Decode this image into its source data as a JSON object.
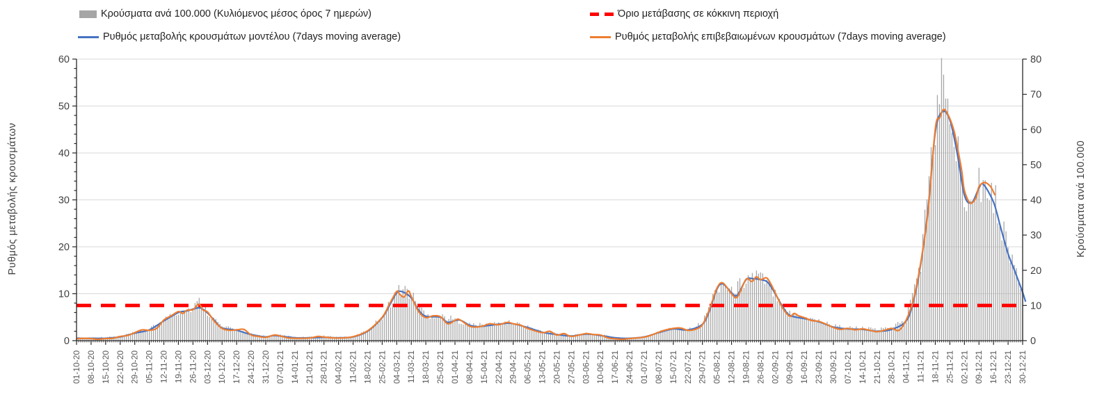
{
  "chart_data": {
    "type": "combo-bar-line",
    "title": "",
    "legend": [
      {
        "label": "Κρούσματα ανά 100.000 (Κυλιόμενος μέσος όρος 7 ημερών)",
        "swatch": "bar",
        "color": "#a6a6a6"
      },
      {
        "label": "Όριο μετάβασης σε κόκκινη περιοχή",
        "swatch": "dashed-line",
        "color": "#ff0000"
      },
      {
        "label": "Ρυθμός μεταβολής κρουσμάτων μοντέλου (7days moving average)",
        "swatch": "line",
        "color": "#4472c4"
      },
      {
        "label": "Ρυθμός μεταβολής επιβεβαιωμένων κρουσμάτων (7days moving average)",
        "swatch": "line",
        "color": "#ed7d31"
      }
    ],
    "left_axis": {
      "title": "Ρυθμός μεταβολής κρουσμάτων",
      "min": 0,
      "max": 60,
      "tick_step": 10,
      "minor_step": 2
    },
    "right_axis": {
      "title": "Κρούσματα ανά 100.000",
      "min": 0,
      "max": 80,
      "tick_step": 10
    },
    "x_labels": [
      "01-10-20",
      "08-10-20",
      "15-10-20",
      "22-10-20",
      "29-10-20",
      "05-11-20",
      "12-11-20",
      "19-11-20",
      "26-11-20",
      "03-12-20",
      "10-12-20",
      "17-12-20",
      "24-12-20",
      "31-12-20",
      "07-01-21",
      "14-01-21",
      "21-01-21",
      "28-01-21",
      "04-02-21",
      "11-02-21",
      "18-02-21",
      "25-02-21",
      "04-03-21",
      "11-03-21",
      "18-03-21",
      "25-03-21",
      "01-04-21",
      "08-04-21",
      "15-04-21",
      "22-04-21",
      "29-04-21",
      "06-05-21",
      "13-05-21",
      "20-05-21",
      "27-05-21",
      "03-06-21",
      "10-06-21",
      "17-06-21",
      "24-06-21",
      "01-07-21",
      "08-07-21",
      "15-07-21",
      "22-07-21",
      "29-07-21",
      "05-08-21",
      "12-08-21",
      "19-08-21",
      "26-08-21",
      "02-09-21",
      "09-09-21",
      "16-09-21",
      "23-09-21",
      "30-09-21",
      "07-10-21",
      "14-10-21",
      "21-10-21",
      "28-10-21",
      "04-11-21",
      "11-11-21",
      "18-11-21",
      "25-11-21",
      "02-12-21",
      "09-12-21",
      "16-12-21",
      "23-12-21",
      "30-12-21"
    ],
    "threshold": {
      "right_axis_value": 10,
      "left_axis_value": 7.5,
      "color": "#ff0000"
    },
    "series": {
      "bars_cases_per_100k_right_axis": [
        [
          0,
          0.9
        ],
        [
          1,
          0.9
        ],
        [
          2,
          1.0
        ],
        [
          3,
          1.3
        ],
        [
          4,
          2.3
        ],
        [
          5,
          3.2
        ],
        [
          6,
          6.0
        ],
        [
          7,
          8.3
        ],
        [
          8,
          9.2
        ],
        [
          8.4,
          11.3
        ],
        [
          9,
          8.2
        ],
        [
          10,
          3.9
        ],
        [
          11,
          3.2
        ],
        [
          12,
          1.9
        ],
        [
          13,
          1.3
        ],
        [
          14,
          1.6
        ],
        [
          15,
          1.0
        ],
        [
          16,
          1.0
        ],
        [
          17,
          1.3
        ],
        [
          18,
          1.0
        ],
        [
          19,
          1.2
        ],
        [
          20,
          2.9
        ],
        [
          21,
          6.8
        ],
        [
          22,
          14.0
        ],
        [
          22.5,
          14.8
        ],
        [
          23,
          13.0
        ],
        [
          24,
          7.2
        ],
        [
          25,
          7.0
        ],
        [
          26,
          6.0
        ],
        [
          27,
          4.6
        ],
        [
          28,
          4.4
        ],
        [
          29,
          5.0
        ],
        [
          30,
          5.2
        ],
        [
          31,
          3.9
        ],
        [
          32,
          2.6
        ],
        [
          33,
          2.0
        ],
        [
          34,
          1.5
        ],
        [
          35,
          2.2
        ],
        [
          36,
          1.7
        ],
        [
          37,
          0.9
        ],
        [
          38,
          0.8
        ],
        [
          39,
          1.2
        ],
        [
          40,
          2.5
        ],
        [
          41,
          3.6
        ],
        [
          42,
          3.3
        ],
        [
          43,
          5.0
        ],
        [
          44,
          15.2
        ],
        [
          44.4,
          16.5
        ],
        [
          45,
          13.6
        ],
        [
          46,
          17.6
        ],
        [
          46.7,
          18.8
        ],
        [
          47,
          17.8
        ],
        [
          48,
          13.8
        ],
        [
          49,
          7.8
        ],
        [
          50,
          6.7
        ],
        [
          51,
          5.7
        ],
        [
          52,
          4.3
        ],
        [
          53,
          3.7
        ],
        [
          54,
          3.6
        ],
        [
          55,
          3.1
        ],
        [
          56,
          3.8
        ],
        [
          57,
          6.3
        ],
        [
          58,
          22.5
        ],
        [
          59,
          62
        ],
        [
          59.4,
          73
        ],
        [
          60,
          64
        ],
        [
          61,
          42
        ],
        [
          62,
          46
        ],
        [
          63,
          41
        ],
        [
          64,
          27
        ],
        [
          65,
          13.5
        ]
      ],
      "model_rate_left_axis": [
        [
          0,
          0.5
        ],
        [
          1,
          0.5
        ],
        [
          2,
          0.5
        ],
        [
          3,
          0.8
        ],
        [
          4,
          1.6
        ],
        [
          5,
          2.3
        ],
        [
          6,
          4.2
        ],
        [
          7,
          6.0
        ],
        [
          7.5,
          6.3
        ],
        [
          8,
          6.7
        ],
        [
          8.5,
          7.0
        ],
        [
          9,
          5.9
        ],
        [
          9.5,
          4.2
        ],
        [
          10,
          2.7
        ],
        [
          11,
          2.2
        ],
        [
          12,
          1.3
        ],
        [
          13,
          0.8
        ],
        [
          13.6,
          1.1
        ],
        [
          15,
          0.6
        ],
        [
          16,
          0.6
        ],
        [
          17,
          0.7
        ],
        [
          18,
          0.6
        ],
        [
          19,
          0.8
        ],
        [
          20,
          2.0
        ],
        [
          21,
          4.9
        ],
        [
          21.5,
          7.5
        ],
        [
          22,
          10.2
        ],
        [
          22.4,
          10.4
        ],
        [
          23,
          9.1
        ],
        [
          23.5,
          6.5
        ],
        [
          24,
          5.2
        ],
        [
          25,
          5.0
        ],
        [
          25.5,
          3.9
        ],
        [
          26.3,
          4.4
        ],
        [
          27,
          3.3
        ],
        [
          27.5,
          3.0
        ],
        [
          28,
          3.1
        ],
        [
          29,
          3.5
        ],
        [
          29.6,
          3.7
        ],
        [
          30,
          3.6
        ],
        [
          31,
          2.8
        ],
        [
          32,
          1.8
        ],
        [
          33,
          1.3
        ],
        [
          34,
          1.0
        ],
        [
          35,
          1.4
        ],
        [
          36,
          1.1
        ],
        [
          37,
          0.6
        ],
        [
          38,
          0.5
        ],
        [
          39,
          0.8
        ],
        [
          40,
          1.7
        ],
        [
          41,
          2.5
        ],
        [
          42,
          2.3
        ],
        [
          43,
          3.5
        ],
        [
          43.5,
          6.5
        ],
        [
          44,
          11.0
        ],
        [
          44.4,
          12.1
        ],
        [
          45,
          10.2
        ],
        [
          45.4,
          9.7
        ],
        [
          46,
          13.0
        ],
        [
          46.5,
          13.2
        ],
        [
          47,
          13.0
        ],
        [
          47.5,
          12.4
        ],
        [
          48,
          10.0
        ],
        [
          48.5,
          7.3
        ],
        [
          49,
          5.4
        ],
        [
          50,
          4.7
        ],
        [
          51,
          4.0
        ],
        [
          52,
          2.9
        ],
        [
          53,
          2.5
        ],
        [
          54,
          2.4
        ],
        [
          55,
          2.0
        ],
        [
          56,
          2.4
        ],
        [
          57,
          4.2
        ],
        [
          57.5,
          8.5
        ],
        [
          58,
          16.3
        ],
        [
          58.5,
          28.0
        ],
        [
          59,
          44.5
        ],
        [
          59.5,
          48.8
        ],
        [
          60,
          47.0
        ],
        [
          60.5,
          40.0
        ],
        [
          61,
          31.0
        ],
        [
          61.5,
          29.4
        ],
        [
          62,
          32.5
        ],
        [
          62.3,
          33.3
        ],
        [
          63,
          29.5
        ],
        [
          63.5,
          24.0
        ],
        [
          64,
          18.5
        ],
        [
          64.5,
          14.5
        ],
        [
          65,
          10.3
        ],
        [
          65.2,
          8.3
        ]
      ],
      "confirmed_rate_left_axis": [
        [
          0,
          0.4
        ],
        [
          0.5,
          0.5
        ],
        [
          1,
          0.45
        ],
        [
          1.5,
          0.3
        ],
        [
          2,
          0.45
        ],
        [
          2.5,
          0.5
        ],
        [
          3,
          0.9
        ],
        [
          3.5,
          1.1
        ],
        [
          4,
          1.7
        ],
        [
          4.5,
          2.3
        ],
        [
          5,
          2.2
        ],
        [
          5.5,
          2.6
        ],
        [
          6,
          4.4
        ],
        [
          6.5,
          5.3
        ],
        [
          7,
          6.2
        ],
        [
          7.3,
          5.8
        ],
        [
          7.6,
          6.5
        ],
        [
          8,
          6.6
        ],
        [
          8.4,
          7.8
        ],
        [
          8.7,
          6.5
        ],
        [
          9,
          6.1
        ],
        [
          9.5,
          4.0
        ],
        [
          10,
          2.6
        ],
        [
          10.5,
          2.2
        ],
        [
          11,
          2.3
        ],
        [
          11.5,
          2.4
        ],
        [
          12,
          1.2
        ],
        [
          12.5,
          0.9
        ],
        [
          13,
          0.7
        ],
        [
          13.6,
          1.2
        ],
        [
          14,
          1.0
        ],
        [
          14.5,
          0.6
        ],
        [
          15,
          0.5
        ],
        [
          16,
          0.55
        ],
        [
          16.6,
          0.9
        ],
        [
          17,
          0.75
        ],
        [
          18,
          0.55
        ],
        [
          19,
          0.85
        ],
        [
          20,
          2.1
        ],
        [
          21,
          5.0
        ],
        [
          21.5,
          7.8
        ],
        [
          22,
          10.5
        ],
        [
          22.2,
          9.9
        ],
        [
          22.5,
          9.3
        ],
        [
          22.8,
          10.6
        ],
        [
          23,
          9.4
        ],
        [
          23.5,
          6.2
        ],
        [
          24,
          4.9
        ],
        [
          24.5,
          5.3
        ],
        [
          25,
          5.1
        ],
        [
          25.5,
          3.6
        ],
        [
          26,
          4.3
        ],
        [
          26.3,
          4.5
        ],
        [
          27,
          3.1
        ],
        [
          27.5,
          2.9
        ],
        [
          28,
          3.2
        ],
        [
          28.4,
          3.6
        ],
        [
          29,
          3.4
        ],
        [
          29.6,
          3.9
        ],
        [
          30,
          3.6
        ],
        [
          30.5,
          3.3
        ],
        [
          31,
          2.6
        ],
        [
          32,
          1.7
        ],
        [
          32.5,
          2.0
        ],
        [
          33,
          1.2
        ],
        [
          33.5,
          1.5
        ],
        [
          34,
          0.9
        ],
        [
          35,
          1.5
        ],
        [
          35.5,
          1.3
        ],
        [
          36,
          1.2
        ],
        [
          36.5,
          0.6
        ],
        [
          37,
          0.4
        ],
        [
          37.5,
          0.3
        ],
        [
          38,
          0.45
        ],
        [
          39,
          0.75
        ],
        [
          39.5,
          1.2
        ],
        [
          40,
          1.8
        ],
        [
          40.5,
          2.3
        ],
        [
          41,
          2.6
        ],
        [
          41.5,
          2.7
        ],
        [
          42,
          2.2
        ],
        [
          42.5,
          2.4
        ],
        [
          43,
          3.4
        ],
        [
          43.5,
          6.8
        ],
        [
          44,
          11.2
        ],
        [
          44.4,
          12.3
        ],
        [
          45,
          10.0
        ],
        [
          45.4,
          9.3
        ],
        [
          46,
          13.1
        ],
        [
          46.4,
          12.6
        ],
        [
          46.7,
          13.6
        ],
        [
          47,
          13.0
        ],
        [
          47.4,
          13.4
        ],
        [
          47.7,
          12.1
        ],
        [
          48,
          10.2
        ],
        [
          48.5,
          7.0
        ],
        [
          49,
          5.2
        ],
        [
          49.3,
          5.8
        ],
        [
          49.6,
          5.3
        ],
        [
          50,
          4.9
        ],
        [
          50.5,
          4.3
        ],
        [
          51,
          4.1
        ],
        [
          51.5,
          3.5
        ],
        [
          52,
          2.8
        ],
        [
          52.5,
          2.4
        ],
        [
          53,
          2.6
        ],
        [
          53.5,
          2.3
        ],
        [
          54,
          2.5
        ],
        [
          54.5,
          2.2
        ],
        [
          55,
          1.9
        ],
        [
          55.5,
          2.2
        ],
        [
          56,
          2.6
        ],
        [
          56.5,
          2.2
        ],
        [
          57,
          4.4
        ],
        [
          57.5,
          8.8
        ],
        [
          58,
          16.6
        ],
        [
          58.5,
          27.5
        ],
        [
          59,
          45.2
        ],
        [
          59.3,
          47.5
        ],
        [
          59.6,
          49.3
        ],
        [
          60,
          47.3
        ],
        [
          60.3,
          44.5
        ],
        [
          60.5,
          41.5
        ],
        [
          60.8,
          36.5
        ],
        [
          61,
          32.0
        ],
        [
          61.4,
          29.3
        ],
        [
          61.8,
          30.5
        ],
        [
          62,
          32.8
        ],
        [
          62.4,
          33.7
        ],
        [
          62.8,
          32.8
        ],
        [
          63.1,
          31.0
        ]
      ]
    },
    "layout": {
      "grid": true,
      "legend_position": "top",
      "gridline_color": "#d9d9d9",
      "axis_color": "#262626",
      "x_label_color": "#595959",
      "y_label_color": "#404040",
      "days_per_week": 7
    }
  }
}
